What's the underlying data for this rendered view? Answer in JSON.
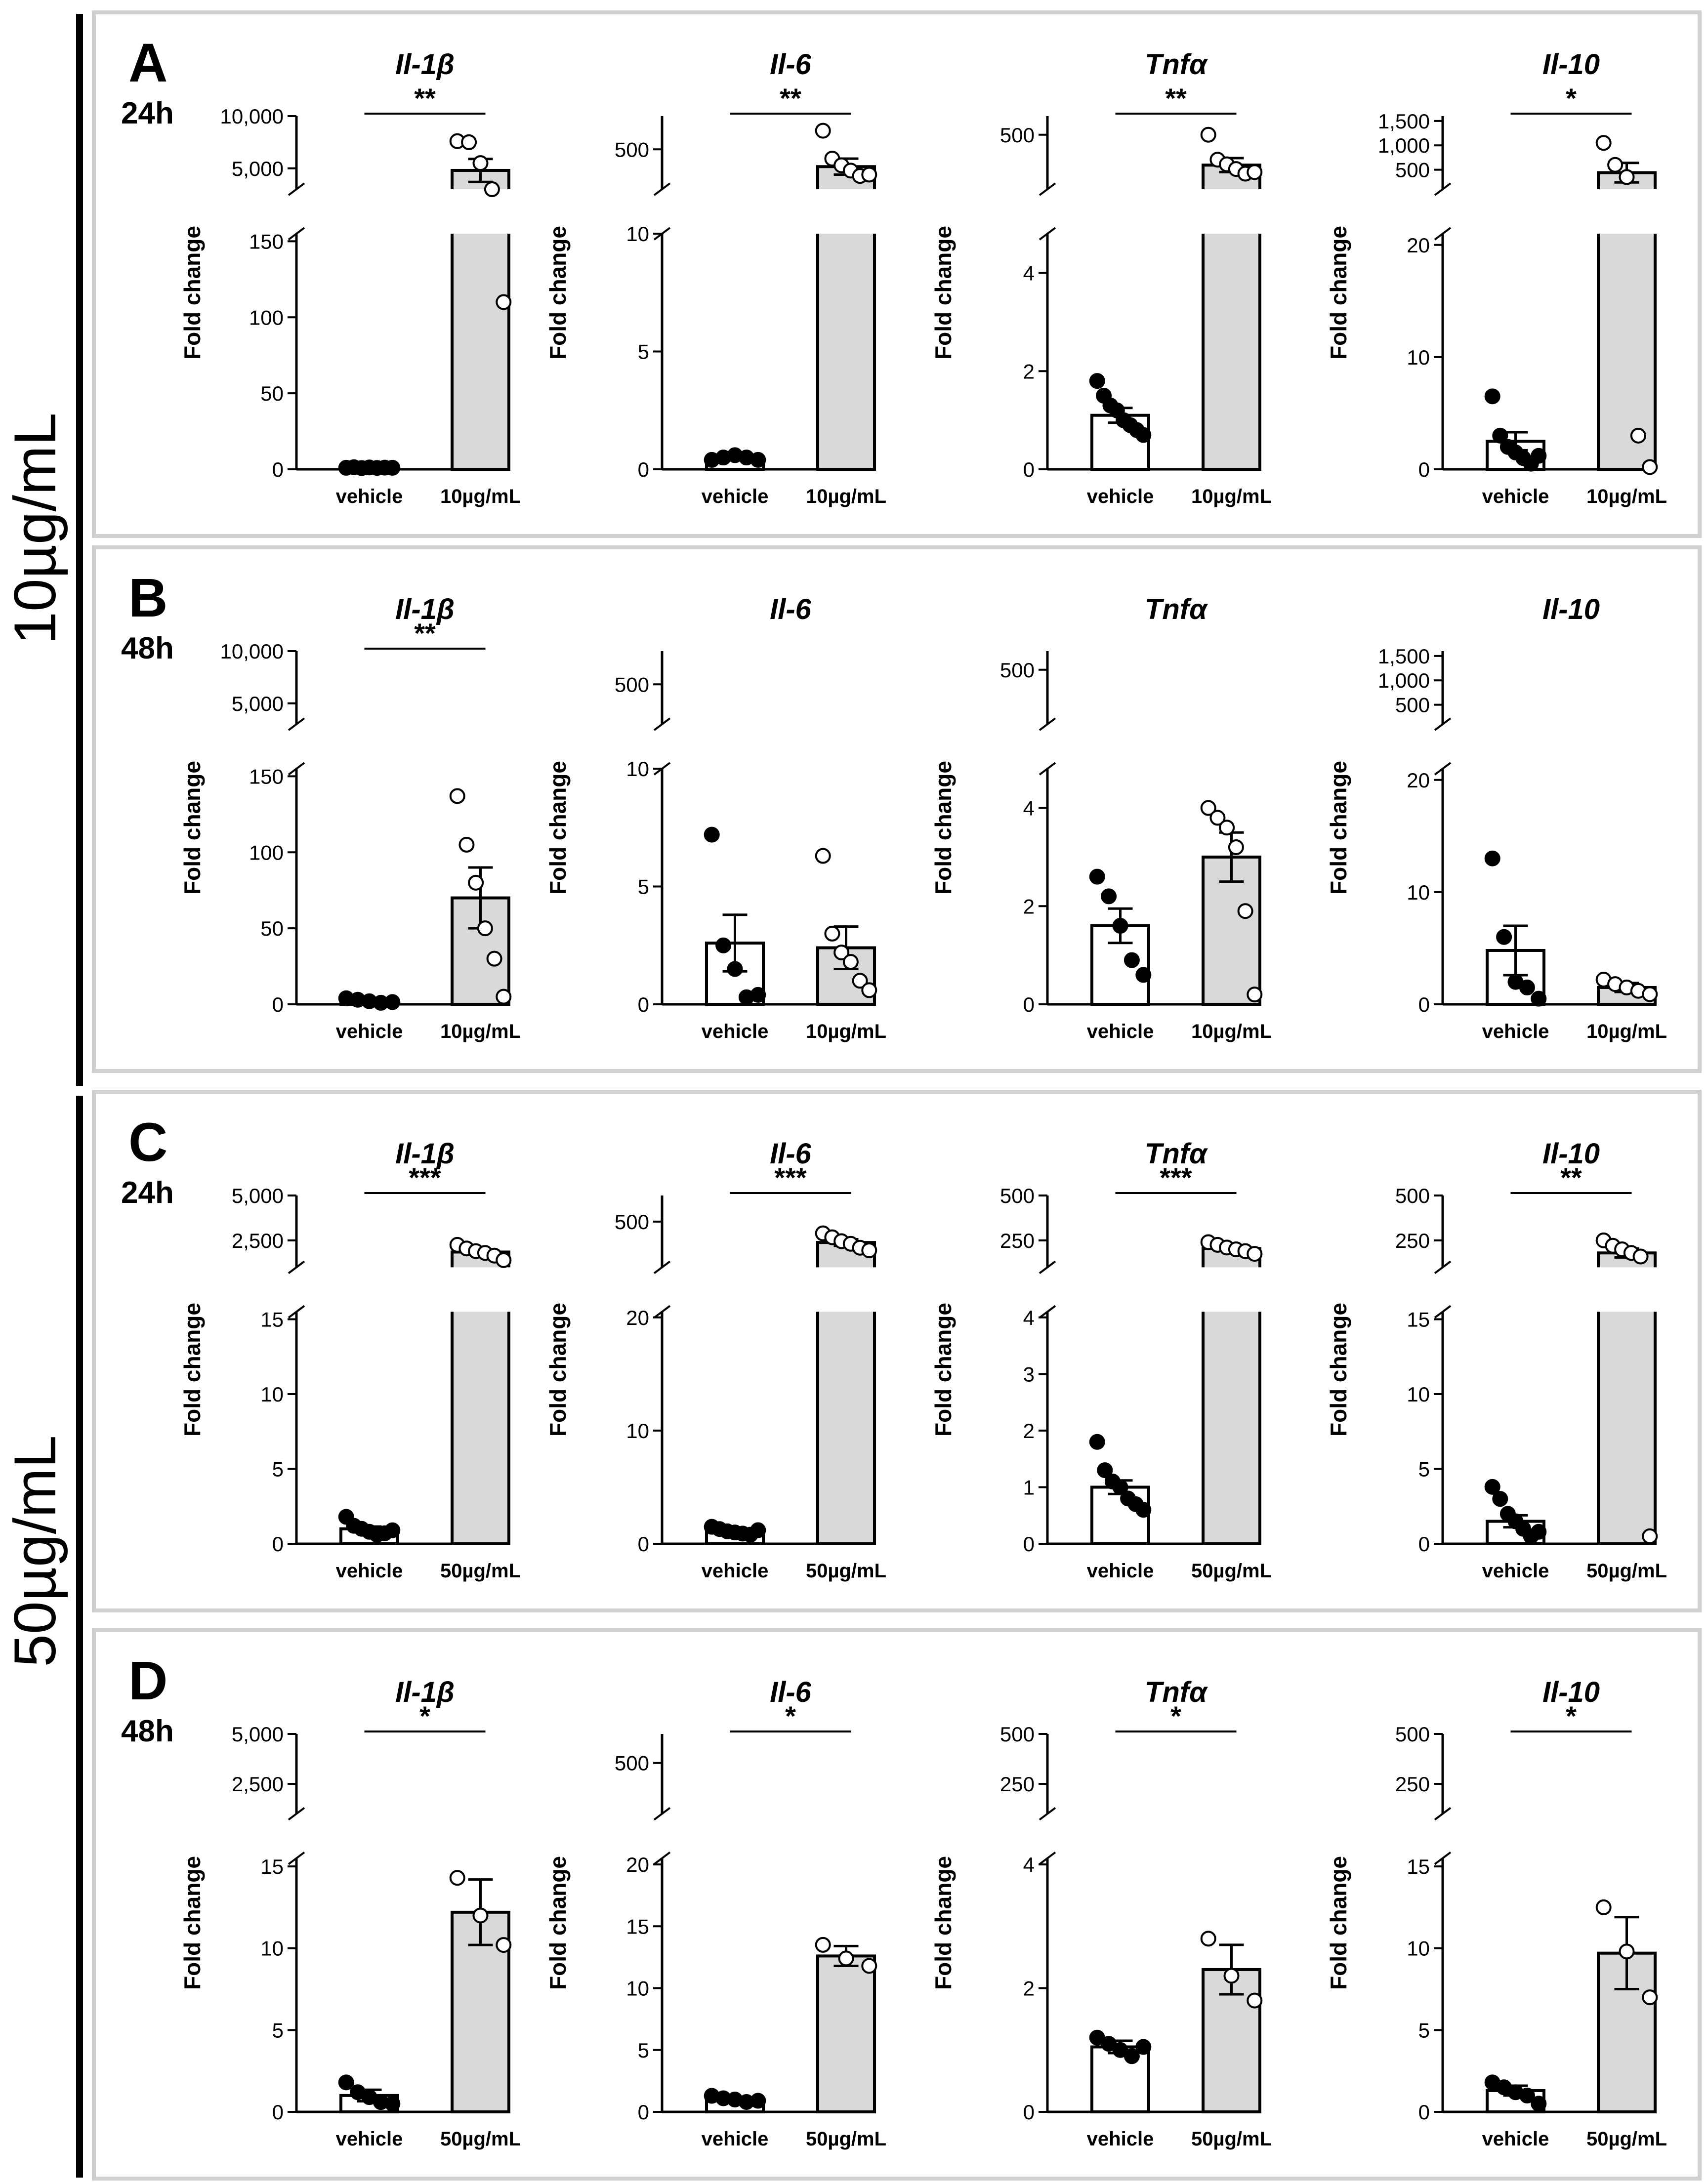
{
  "figure": {
    "group_labels": [
      "10µg/mL",
      "50µg/mL"
    ],
    "y_axis_label": "Fold change",
    "vehicle_label": "vehicle",
    "colors": {
      "vehicle_bar": "#ffffff",
      "treated_bar": "#d9d9d9",
      "frame": "#d0d0d0",
      "ink": "#000000"
    }
  },
  "panels": [
    {
      "letter": "A",
      "time": "24h",
      "group": 0,
      "treatment": "10µg/mL",
      "charts": [
        {
          "title": "Il-1β",
          "sig": "**",
          "type": "bar",
          "axis": {
            "lower": {
              "ticks": [
                0,
                50,
                100,
                150
              ],
              "range": [
                0,
                155
              ]
            },
            "upper": {
              "ticks": [
                5000,
                10000
              ],
              "tick_labels": [
                "5,000",
                "10,000"
              ],
              "range": [
                3000,
                10000
              ]
            }
          },
          "categories": [
            "vehicle",
            "10µg/mL"
          ],
          "means": [
            1,
            4800
          ],
          "sems": [
            0.3,
            1100
          ],
          "points": [
            [
              1,
              1.4,
              0.8,
              1.2,
              0.9,
              1.1,
              1.0
            ],
            [
              7600,
              7500,
              5500,
              3000,
              110
            ]
          ]
        },
        {
          "title": "Il-6",
          "sig": "**",
          "type": "bar",
          "axis": {
            "lower": {
              "ticks": [
                0,
                5,
                10
              ],
              "range": [
                0,
                10
              ]
            },
            "upper": {
              "ticks": [
                500
              ],
              "tick_labels": [
                "500"
              ],
              "range": [
                200,
                750
              ]
            }
          },
          "categories": [
            "vehicle",
            "10µg/mL"
          ],
          "means": [
            0.5,
            370
          ],
          "sems": [
            0.05,
            60
          ],
          "points": [
            [
              0.4,
              0.5,
              0.6,
              0.5,
              0.4
            ],
            [
              640,
              430,
              380,
              340,
              300,
              310
            ]
          ]
        },
        {
          "title": "Tnfα",
          "sig": "**",
          "type": "bar",
          "axis": {
            "lower": {
              "ticks": [
                0,
                2,
                4
              ],
              "range": [
                0,
                4.8
              ]
            },
            "upper": {
              "ticks": [
                500
              ],
              "tick_labels": [
                "500"
              ],
              "range": [
                150,
                620
              ]
            }
          },
          "categories": [
            "vehicle",
            "10µg/mL"
          ],
          "means": [
            1.1,
            305
          ],
          "sems": [
            0.15,
            45
          ],
          "points": [
            [
              1.8,
              1.5,
              1.3,
              1.2,
              1.0,
              0.9,
              0.8,
              0.7
            ],
            [
              500,
              340,
              310,
              280,
              250,
              260
            ]
          ]
        },
        {
          "title": "Il-10",
          "sig": "*",
          "type": "bar",
          "axis": {
            "lower": {
              "ticks": [
                0,
                10,
                20
              ],
              "range": [
                0,
                21
              ]
            },
            "upper": {
              "ticks": [
                500,
                1000,
                1500
              ],
              "tick_labels": [
                "500",
                "1,000",
                "1,500"
              ],
              "range": [
                100,
                1600
              ]
            }
          },
          "categories": [
            "vehicle",
            "10µg/mL"
          ],
          "means": [
            2.5,
            440
          ],
          "sems": [
            0.8,
            200
          ],
          "points": [
            [
              6.5,
              3,
              2,
              1.5,
              1,
              0.5,
              1.2
            ],
            [
              1050,
              600,
              350,
              3,
              0.2
            ]
          ]
        }
      ]
    },
    {
      "letter": "B",
      "time": "48h",
      "group": 0,
      "treatment": "10µg/mL",
      "charts": [
        {
          "title": "Il-1β",
          "sig": "**",
          "type": "bar",
          "axis": {
            "lower": {
              "ticks": [
                0,
                50,
                100,
                150
              ],
              "range": [
                0,
                155
              ]
            },
            "upper": {
              "ticks": [
                5000,
                10000
              ],
              "tick_labels": [
                "5,000",
                "10,000"
              ],
              "range": [
                3000,
                10000
              ]
            }
          },
          "categories": [
            "vehicle",
            "10µg/mL"
          ],
          "means": [
            2,
            70
          ],
          "sems": [
            1,
            20
          ],
          "points": [
            [
              4,
              3,
              2,
              1,
              1.5
            ],
            [
              137,
              105,
              80,
              50,
              30,
              5
            ]
          ]
        },
        {
          "title": "Il-6",
          "sig": "",
          "type": "bar",
          "axis": {
            "lower": {
              "ticks": [
                0,
                5,
                10
              ],
              "range": [
                0,
                10
              ]
            },
            "upper": {
              "ticks": [
                500
              ],
              "tick_labels": [
                "500"
              ],
              "range": [
                200,
                750
              ]
            }
          },
          "categories": [
            "vehicle",
            "10µg/mL"
          ],
          "means": [
            2.6,
            2.4
          ],
          "sems": [
            1.2,
            0.9
          ],
          "points": [
            [
              7.2,
              2.5,
              1.5,
              0.3,
              0.4
            ],
            [
              6.3,
              3.0,
              2.2,
              1.8,
              1.0,
              0.6
            ]
          ]
        },
        {
          "title": "Tnfα",
          "sig": "",
          "type": "bar",
          "axis": {
            "lower": {
              "ticks": [
                0,
                2,
                4
              ],
              "range": [
                0,
                4.8
              ]
            },
            "upper": {
              "ticks": [
                500
              ],
              "tick_labels": [
                "500"
              ],
              "range": [
                150,
                620
              ]
            }
          },
          "categories": [
            "vehicle",
            "10µg/mL"
          ],
          "means": [
            1.6,
            3.0
          ],
          "sems": [
            0.35,
            0.5
          ],
          "points": [
            [
              2.6,
              2.2,
              1.6,
              0.9,
              0.6
            ],
            [
              4.0,
              3.8,
              3.6,
              3.2,
              1.9,
              0.2
            ]
          ]
        },
        {
          "title": "Il-10",
          "sig": "",
          "type": "bar",
          "axis": {
            "lower": {
              "ticks": [
                0,
                10,
                20
              ],
              "range": [
                0,
                21
              ]
            },
            "upper": {
              "ticks": [
                500,
                1000,
                1500
              ],
              "tick_labels": [
                "500",
                "1,000",
                "1,500"
              ],
              "range": [
                100,
                1600
              ]
            }
          },
          "categories": [
            "vehicle",
            "10µg/mL"
          ],
          "means": [
            4.8,
            1.5
          ],
          "sems": [
            2.2,
            0.4
          ],
          "points": [
            [
              13,
              6,
              2,
              1.5,
              0.5
            ],
            [
              2.2,
              1.8,
              1.5,
              1.2,
              0.9
            ]
          ]
        }
      ]
    },
    {
      "letter": "C",
      "time": "24h",
      "group": 1,
      "treatment": "50µg/mL",
      "charts": [
        {
          "title": "Il-1β",
          "sig": "***",
          "type": "bar",
          "axis": {
            "lower": {
              "ticks": [
                0,
                5,
                10,
                15
              ],
              "range": [
                0,
                15.5
              ]
            },
            "upper": {
              "ticks": [
                2500,
                5000
              ],
              "tick_labels": [
                "2,500",
                "5,000"
              ],
              "range": [
                1000,
                5000
              ]
            }
          },
          "categories": [
            "vehicle",
            "50µg/mL"
          ],
          "means": [
            1,
            1850
          ],
          "sems": [
            0.15,
            150
          ],
          "points": [
            [
              1.8,
              1.2,
              1.0,
              0.8,
              0.6,
              0.7,
              0.9
            ],
            [
              2250,
              2050,
              1900,
              1800,
              1650,
              1400
            ]
          ]
        },
        {
          "title": "Il-6",
          "sig": "***",
          "type": "bar",
          "axis": {
            "lower": {
              "ticks": [
                0,
                10,
                20
              ],
              "range": [
                0,
                20.5
              ]
            },
            "upper": {
              "ticks": [
                500
              ],
              "tick_labels": [
                "500"
              ],
              "range": [
                150,
                700
              ]
            }
          },
          "categories": [
            "vehicle",
            "50µg/mL"
          ],
          "means": [
            1.2,
            340
          ],
          "sems": [
            0.1,
            25
          ],
          "points": [
            [
              1.5,
              1.3,
              1.1,
              1.0,
              0.9,
              0.8,
              1.2
            ],
            [
              410,
              380,
              350,
              330,
              300,
              280
            ]
          ]
        },
        {
          "title": "Tnfα",
          "sig": "***",
          "type": "bar",
          "axis": {
            "lower": {
              "ticks": [
                0,
                1,
                2,
                3,
                4
              ],
              "range": [
                0,
                4.1
              ]
            },
            "upper": {
              "ticks": [
                250,
                500
              ],
              "tick_labels": [
                "250",
                "500"
              ],
              "range": [
                100,
                500
              ]
            }
          },
          "categories": [
            "vehicle",
            "50µg/mL"
          ],
          "means": [
            1.0,
            205
          ],
          "sems": [
            0.12,
            12
          ],
          "points": [
            [
              1.8,
              1.3,
              1.1,
              1.0,
              0.8,
              0.7,
              0.6
            ],
            [
              240,
              225,
              210,
              200,
              190,
              175
            ]
          ]
        },
        {
          "title": "Il-10",
          "sig": "**",
          "type": "bar",
          "axis": {
            "lower": {
              "ticks": [
                0,
                5,
                10,
                15
              ],
              "range": [
                0,
                15.5
              ]
            },
            "upper": {
              "ticks": [
                250,
                500
              ],
              "tick_labels": [
                "250",
                "500"
              ],
              "range": [
                100,
                500
              ]
            }
          },
          "categories": [
            "vehicle",
            "50µg/mL"
          ],
          "means": [
            1.5,
            180
          ],
          "sems": [
            0.4,
            25
          ],
          "points": [
            [
              3.8,
              3,
              2,
              1.5,
              1,
              0.5,
              0.8
            ],
            [
              250,
              220,
              200,
              180,
              160,
              0.5
            ]
          ]
        }
      ]
    },
    {
      "letter": "D",
      "time": "48h",
      "group": 1,
      "treatment": "50µg/mL",
      "charts": [
        {
          "title": "Il-1β",
          "sig": "*",
          "type": "bar",
          "axis": {
            "lower": {
              "ticks": [
                0,
                5,
                10,
                15
              ],
              "range": [
                0,
                15.5
              ]
            },
            "upper": {
              "ticks": [
                2500,
                5000
              ],
              "tick_labels": [
                "2,500",
                "5,000"
              ],
              "range": [
                1000,
                5000
              ]
            }
          },
          "categories": [
            "vehicle",
            "50µg/mL"
          ],
          "means": [
            1.0,
            12.2
          ],
          "sems": [
            0.35,
            2.0
          ],
          "points": [
            [
              1.8,
              1.2,
              0.9,
              0.6,
              0.5
            ],
            [
              14.3,
              12.0,
              10.2
            ]
          ]
        },
        {
          "title": "Il-6",
          "sig": "*",
          "type": "bar",
          "axis": {
            "lower": {
              "ticks": [
                0,
                5,
                10,
                15,
                20
              ],
              "range": [
                0,
                20.5
              ]
            },
            "upper": {
              "ticks": [
                500
              ],
              "tick_labels": [
                "500"
              ],
              "range": [
                150,
                700
              ]
            }
          },
          "categories": [
            "vehicle",
            "50µg/mL"
          ],
          "means": [
            1.0,
            12.6
          ],
          "sems": [
            0.15,
            0.8
          ],
          "points": [
            [
              1.3,
              1.1,
              1.0,
              0.8,
              0.9
            ],
            [
              13.5,
              12.4,
              11.8
            ]
          ]
        },
        {
          "title": "Tnfα",
          "sig": "*",
          "type": "bar",
          "axis": {
            "lower": {
              "ticks": [
                0,
                2,
                4
              ],
              "range": [
                0,
                4.1
              ]
            },
            "upper": {
              "ticks": [
                250,
                500
              ],
              "tick_labels": [
                "250",
                "500"
              ],
              "range": [
                100,
                500
              ]
            }
          },
          "categories": [
            "vehicle",
            "50µg/mL"
          ],
          "means": [
            1.05,
            2.3
          ],
          "sems": [
            0.1,
            0.4
          ],
          "points": [
            [
              1.2,
              1.1,
              1.0,
              0.9,
              1.05
            ],
            [
              2.8,
              2.2,
              1.8
            ]
          ]
        },
        {
          "title": "Il-10",
          "sig": "*",
          "type": "bar",
          "axis": {
            "lower": {
              "ticks": [
                0,
                5,
                10,
                15
              ],
              "range": [
                0,
                15.5
              ]
            },
            "upper": {
              "ticks": [
                250,
                500
              ],
              "tick_labels": [
                "250",
                "500"
              ],
              "range": [
                100,
                500
              ]
            }
          },
          "categories": [
            "vehicle",
            "50µg/mL"
          ],
          "means": [
            1.3,
            9.7
          ],
          "sems": [
            0.3,
            2.2
          ],
          "points": [
            [
              1.8,
              1.5,
              1.2,
              1.0,
              0.5
            ],
            [
              12.5,
              9.8,
              7.0
            ]
          ]
        }
      ]
    }
  ]
}
